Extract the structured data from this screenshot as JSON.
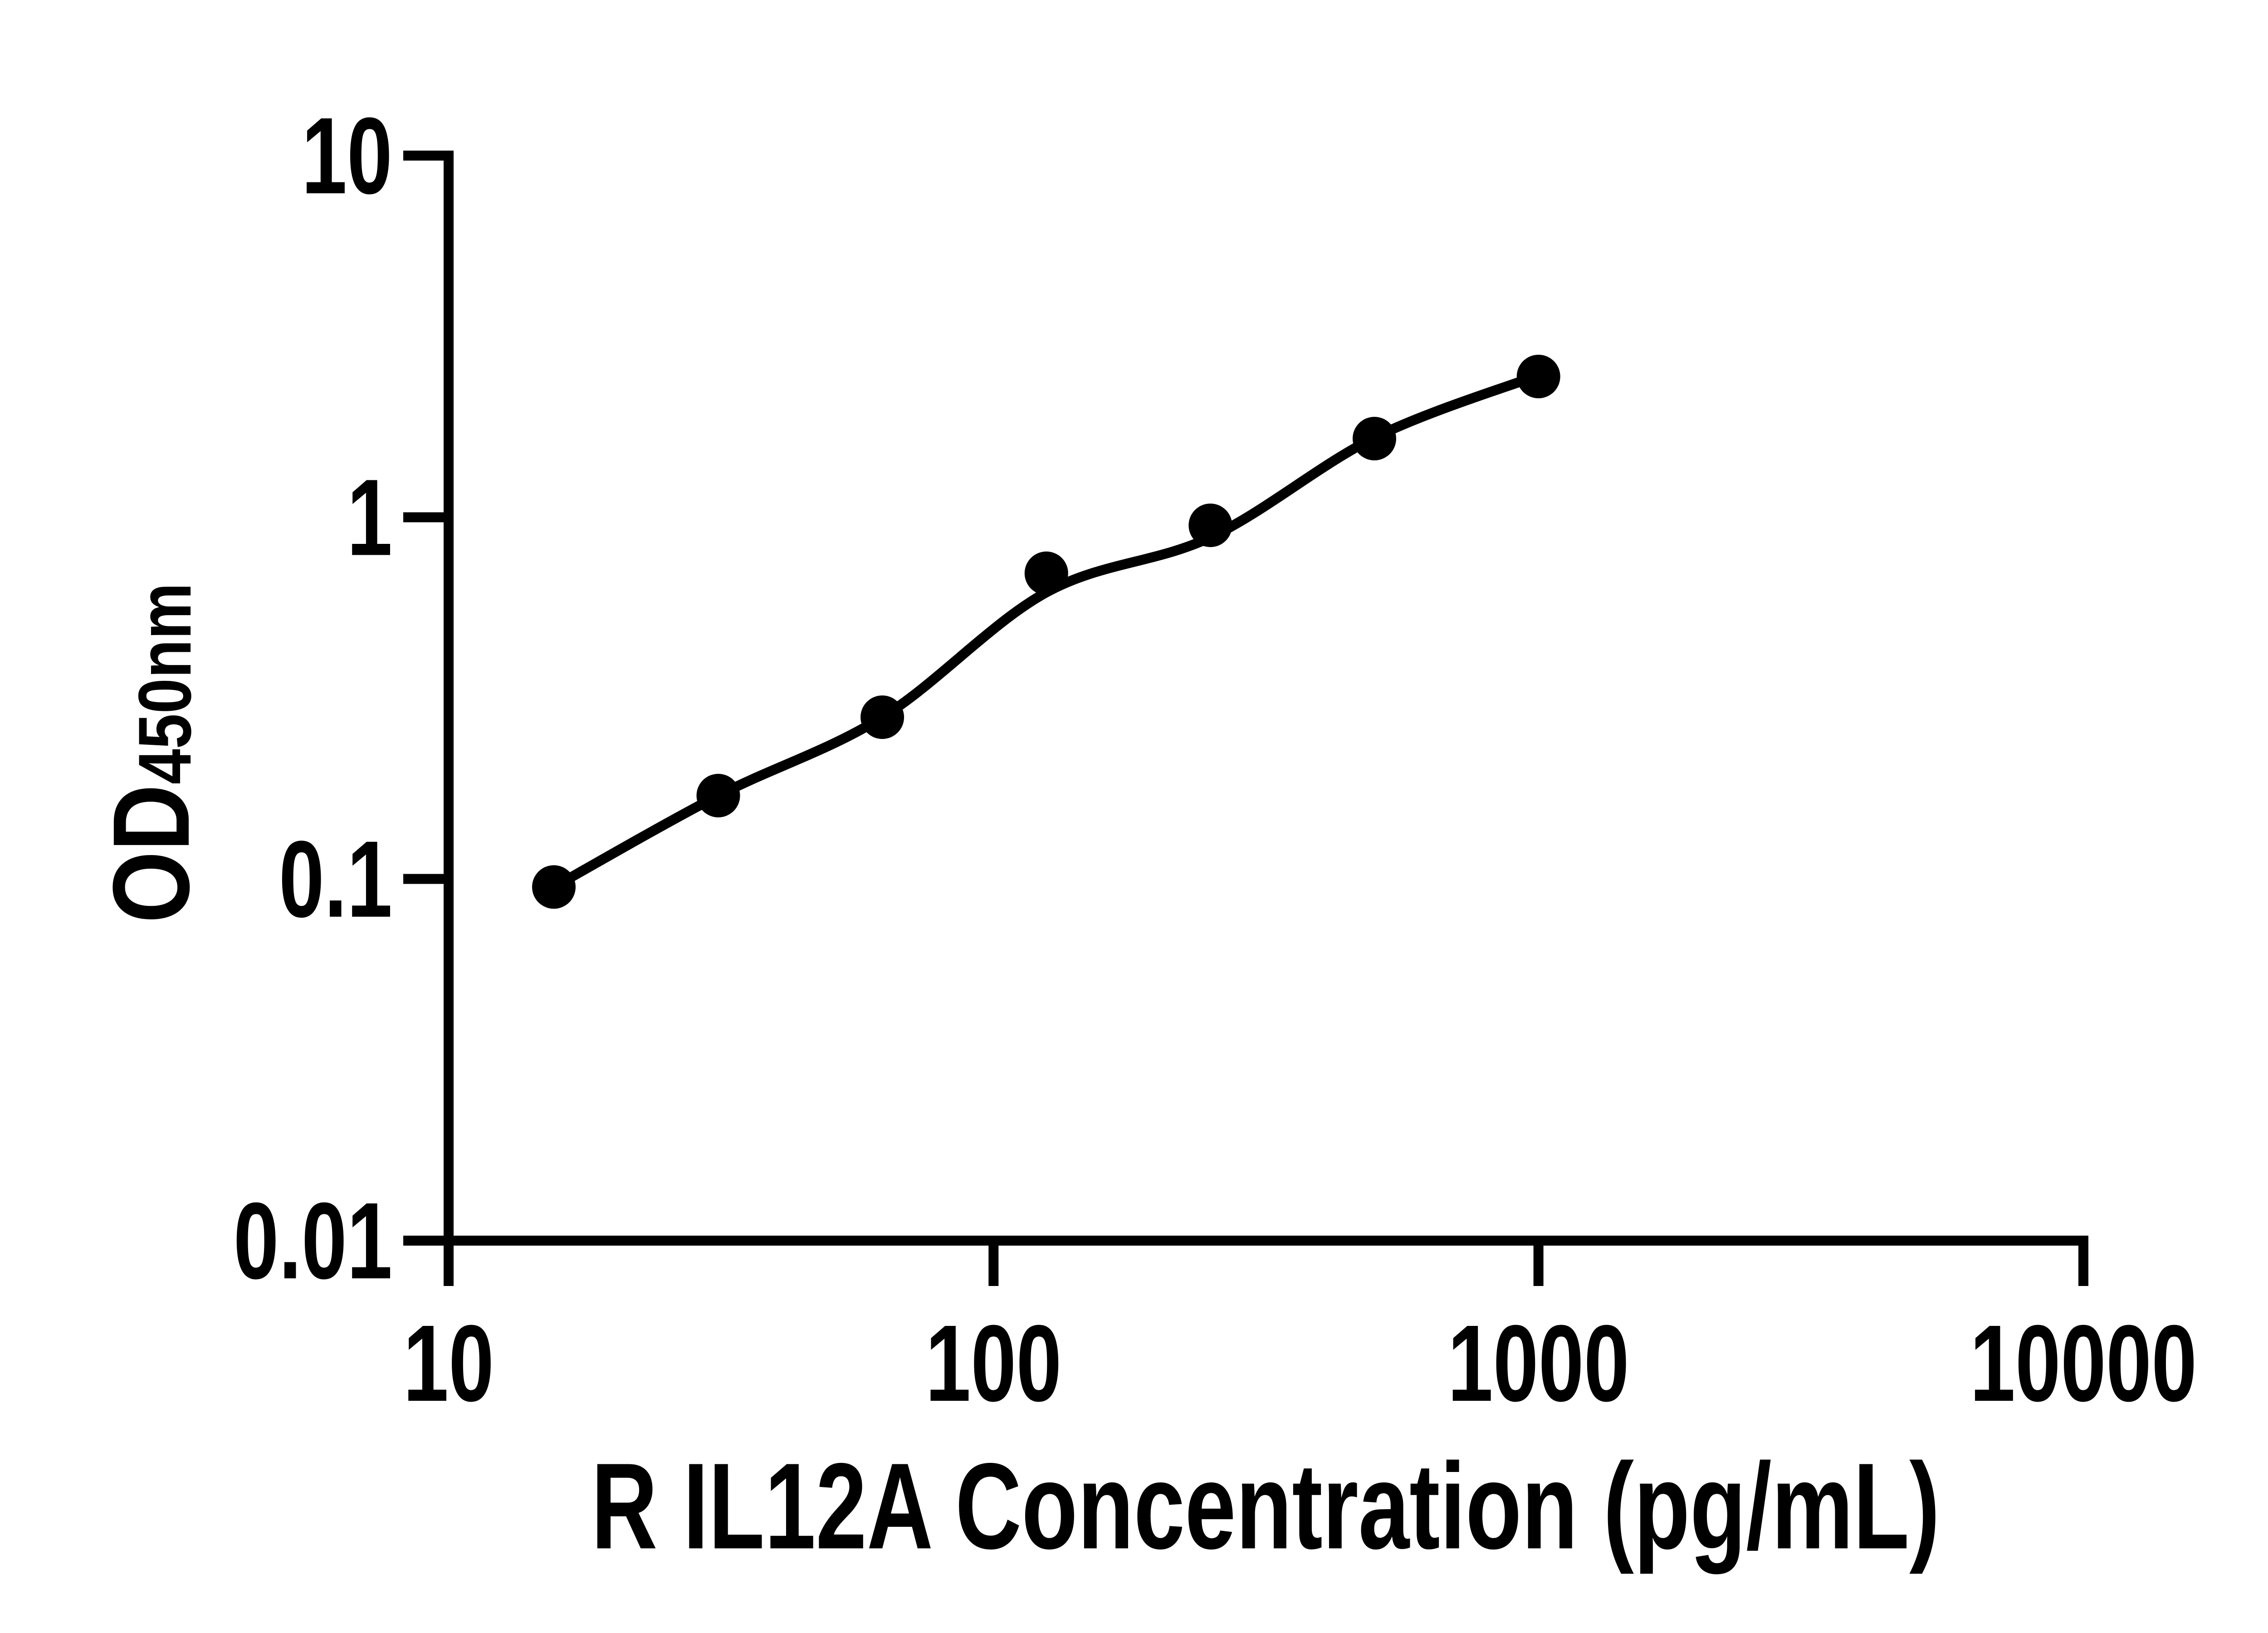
{
  "figure": {
    "background_color": "#ffffff",
    "ink_color": "#000000"
  },
  "chart_data": {
    "type": "scatter",
    "title": "",
    "xlabel": "R IL12A Concentration (pg/mL)",
    "ylabel_base": "OD",
    "ylabel_subscript": "450nm",
    "x_scale": "log10",
    "y_scale": "log10",
    "xlim": [
      10,
      10000
    ],
    "ylim": [
      0.01,
      10
    ],
    "x_ticks": [
      10,
      100,
      1000,
      10000
    ],
    "x_tick_labels": [
      "10",
      "100",
      "1000",
      "10000"
    ],
    "y_ticks": [
      0.01,
      0.1,
      1,
      10
    ],
    "y_tick_labels": [
      "0.01",
      "0.1",
      "1",
      "10"
    ],
    "grid": false,
    "legend": "none",
    "marker": "circle",
    "series": [
      {
        "name": "standard-points",
        "role": "scatter",
        "color": "#000000",
        "x": [
          15.6,
          31.25,
          62.5,
          125,
          250,
          500,
          1000
        ],
        "y": [
          0.095,
          0.17,
          0.28,
          0.7,
          0.95,
          1.65,
          2.45
        ]
      },
      {
        "name": "fitted-curve",
        "role": "line",
        "color": "#000000",
        "x": [
          15.6,
          31.25,
          62.5,
          125,
          250,
          500,
          1000
        ],
        "y": [
          0.095,
          0.17,
          0.28,
          0.62,
          0.88,
          1.66,
          2.47
        ]
      }
    ]
  }
}
